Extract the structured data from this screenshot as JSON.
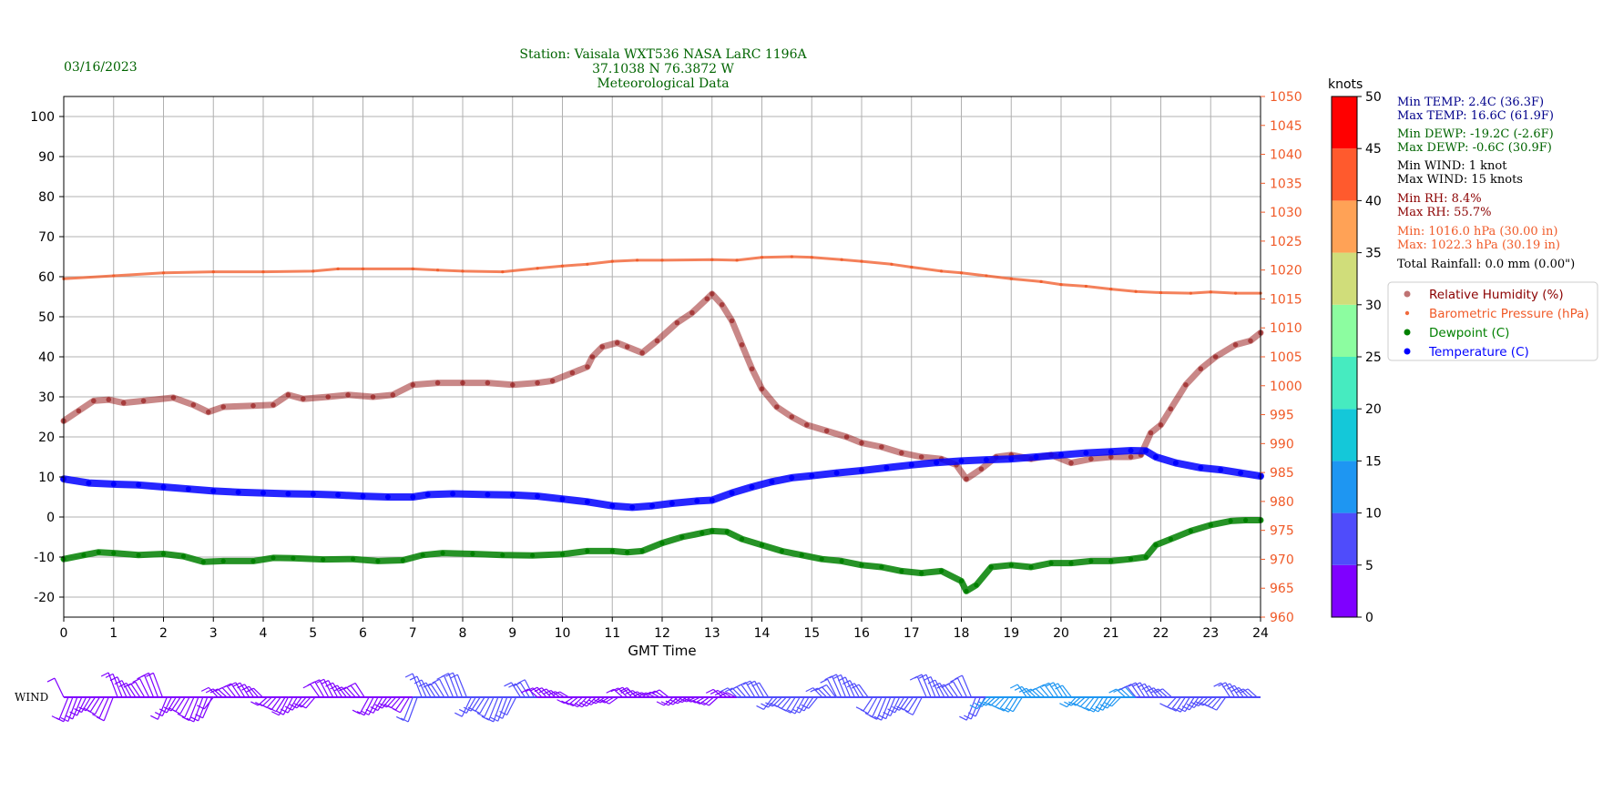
{
  "header": {
    "date": "03/16/2023",
    "station_line1": "Station:  Vaisala WXT536  NASA LaRC 1196A",
    "station_line2": "37.1038 N 76.3872 W",
    "station_line3": "Meteorological Data"
  },
  "colors": {
    "rh": "#8b0000",
    "pressure": "#f05a28",
    "dewpoint": "#008000",
    "temperature": "#0000ff",
    "stats_temp": "#00008b",
    "stats_dewp": "#006400",
    "stats_wind": "#000000",
    "stats_rh": "#8b0000",
    "stats_pressure": "#f05a28"
  },
  "chart_data": {
    "type": "scatter",
    "xlabel": "GMT Time",
    "xlim": [
      0,
      24
    ],
    "x_ticks": [
      "0",
      "1",
      "2",
      "3",
      "4",
      "5",
      "6",
      "7",
      "8",
      "9",
      "10",
      "11",
      "12",
      "13",
      "14",
      "15",
      "16",
      "17",
      "18",
      "19",
      "20",
      "21",
      "22",
      "23",
      "24"
    ],
    "ylim_left": [
      -25,
      105
    ],
    "y_ticks_left": [
      "-20",
      "-10",
      "0",
      "10",
      "20",
      "30",
      "40",
      "50",
      "60",
      "70",
      "80",
      "90",
      "100"
    ],
    "ylim_right": [
      960,
      1050
    ],
    "y_ticks_right": [
      "960",
      "965",
      "970",
      "975",
      "980",
      "985",
      "990",
      "995",
      "1000",
      "1005",
      "1010",
      "1015",
      "1020",
      "1025",
      "1030",
      "1035",
      "1040",
      "1045",
      "1050"
    ],
    "grid": true,
    "legend_position": "right",
    "series": [
      {
        "name": "Relative Humidity (%)",
        "axis": "left",
        "points": [
          [
            0,
            24
          ],
          [
            0.3,
            26.5
          ],
          [
            0.6,
            29
          ],
          [
            0.9,
            29.3
          ],
          [
            1.2,
            28.5
          ],
          [
            1.6,
            29
          ],
          [
            2.2,
            29.8
          ],
          [
            2.6,
            28
          ],
          [
            2.9,
            26.2
          ],
          [
            3.2,
            27.5
          ],
          [
            3.8,
            27.8
          ],
          [
            4.2,
            28
          ],
          [
            4.5,
            30.5
          ],
          [
            4.8,
            29.5
          ],
          [
            5.3,
            30
          ],
          [
            5.7,
            30.5
          ],
          [
            6.2,
            30
          ],
          [
            6.6,
            30.5
          ],
          [
            7,
            33
          ],
          [
            7.5,
            33.5
          ],
          [
            8,
            33.5
          ],
          [
            8.5,
            33.5
          ],
          [
            9,
            33
          ],
          [
            9.5,
            33.5
          ],
          [
            9.8,
            34
          ],
          [
            10.2,
            36
          ],
          [
            10.5,
            37.5
          ],
          [
            10.6,
            40
          ],
          [
            10.8,
            42.5
          ],
          [
            11.1,
            43.5
          ],
          [
            11.3,
            42.5
          ],
          [
            11.6,
            41
          ],
          [
            11.9,
            44
          ],
          [
            12.3,
            48.5
          ],
          [
            12.6,
            51
          ],
          [
            12.9,
            54.5
          ],
          [
            13,
            55.7
          ],
          [
            13.2,
            53
          ],
          [
            13.4,
            49
          ],
          [
            13.6,
            43
          ],
          [
            13.8,
            37
          ],
          [
            14,
            32
          ],
          [
            14.3,
            27.5
          ],
          [
            14.6,
            25
          ],
          [
            14.9,
            23
          ],
          [
            15.3,
            21.5
          ],
          [
            15.7,
            20
          ],
          [
            16,
            18.5
          ],
          [
            16.4,
            17.5
          ],
          [
            16.8,
            16
          ],
          [
            17.2,
            15
          ],
          [
            17.6,
            14.5
          ],
          [
            17.9,
            13
          ],
          [
            18.1,
            9.5
          ],
          [
            18.4,
            12
          ],
          [
            18.7,
            15
          ],
          [
            19,
            15.5
          ],
          [
            19.4,
            14.5
          ],
          [
            19.8,
            15.5
          ],
          [
            20.2,
            13.5
          ],
          [
            20.6,
            14.5
          ],
          [
            21,
            15
          ],
          [
            21.4,
            15
          ],
          [
            21.6,
            15.5
          ],
          [
            21.8,
            21
          ],
          [
            22,
            23
          ],
          [
            22.2,
            27
          ],
          [
            22.5,
            33
          ],
          [
            22.8,
            37
          ],
          [
            23.1,
            40
          ],
          [
            23.5,
            43
          ],
          [
            23.8,
            44
          ],
          [
            24,
            46
          ]
        ]
      },
      {
        "name": "Barometric Pressure (hPa)",
        "axis": "right",
        "points": [
          [
            0,
            1018.5
          ],
          [
            1,
            1019
          ],
          [
            2,
            1019.5
          ],
          [
            3,
            1019.7
          ],
          [
            4,
            1019.7
          ],
          [
            5,
            1019.8
          ],
          [
            5.5,
            1020.2
          ],
          [
            6,
            1020.2
          ],
          [
            7,
            1020.2
          ],
          [
            7.5,
            1020
          ],
          [
            8,
            1019.8
          ],
          [
            8.8,
            1019.7
          ],
          [
            9.5,
            1020.3
          ],
          [
            10,
            1020.7
          ],
          [
            10.5,
            1021
          ],
          [
            11,
            1021.5
          ],
          [
            11.5,
            1021.7
          ],
          [
            12,
            1021.7
          ],
          [
            13,
            1021.8
          ],
          [
            13.5,
            1021.7
          ],
          [
            14,
            1022.2
          ],
          [
            14.6,
            1022.3
          ],
          [
            15,
            1022.2
          ],
          [
            15.6,
            1021.8
          ],
          [
            16,
            1021.5
          ],
          [
            16.6,
            1021
          ],
          [
            17,
            1020.5
          ],
          [
            17.6,
            1019.8
          ],
          [
            18,
            1019.5
          ],
          [
            18.5,
            1019
          ],
          [
            19,
            1018.5
          ],
          [
            19.6,
            1018
          ],
          [
            20,
            1017.5
          ],
          [
            20.5,
            1017.2
          ],
          [
            21,
            1016.7
          ],
          [
            21.5,
            1016.3
          ],
          [
            22,
            1016.1
          ],
          [
            22.6,
            1016
          ],
          [
            23,
            1016.2
          ],
          [
            23.5,
            1016
          ],
          [
            24,
            1016
          ]
        ]
      },
      {
        "name": "Dewpoint (C)",
        "axis": "left",
        "points": [
          [
            0,
            -10.5
          ],
          [
            0.4,
            -9.5
          ],
          [
            0.7,
            -8.8
          ],
          [
            1,
            -9
          ],
          [
            1.5,
            -9.5
          ],
          [
            2,
            -9.2
          ],
          [
            2.4,
            -9.8
          ],
          [
            2.8,
            -11.2
          ],
          [
            3.2,
            -11
          ],
          [
            3.8,
            -11
          ],
          [
            4.2,
            -10.2
          ],
          [
            4.6,
            -10.3
          ],
          [
            5.2,
            -10.6
          ],
          [
            5.8,
            -10.5
          ],
          [
            6.3,
            -11
          ],
          [
            6.8,
            -10.8
          ],
          [
            7.2,
            -9.5
          ],
          [
            7.6,
            -9
          ],
          [
            8.2,
            -9.2
          ],
          [
            8.8,
            -9.5
          ],
          [
            9.4,
            -9.6
          ],
          [
            10,
            -9.3
          ],
          [
            10.5,
            -8.5
          ],
          [
            11,
            -8.5
          ],
          [
            11.3,
            -8.8
          ],
          [
            11.6,
            -8.5
          ],
          [
            12,
            -6.5
          ],
          [
            12.4,
            -5
          ],
          [
            12.8,
            -4
          ],
          [
            13,
            -3.5
          ],
          [
            13.3,
            -3.7
          ],
          [
            13.6,
            -5.5
          ],
          [
            14,
            -7
          ],
          [
            14.4,
            -8.5
          ],
          [
            14.8,
            -9.5
          ],
          [
            15.2,
            -10.5
          ],
          [
            15.6,
            -11
          ],
          [
            16,
            -12
          ],
          [
            16.4,
            -12.5
          ],
          [
            16.8,
            -13.5
          ],
          [
            17.2,
            -14
          ],
          [
            17.6,
            -13.5
          ],
          [
            18,
            -16
          ],
          [
            18.1,
            -18.5
          ],
          [
            18.3,
            -17
          ],
          [
            18.6,
            -12.5
          ],
          [
            19,
            -12
          ],
          [
            19.4,
            -12.5
          ],
          [
            19.8,
            -11.5
          ],
          [
            20.2,
            -11.5
          ],
          [
            20.6,
            -11
          ],
          [
            21,
            -11
          ],
          [
            21.4,
            -10.5
          ],
          [
            21.7,
            -10
          ],
          [
            21.9,
            -7
          ],
          [
            22.2,
            -5.5
          ],
          [
            22.6,
            -3.5
          ],
          [
            23,
            -2
          ],
          [
            23.4,
            -1
          ],
          [
            23.7,
            -0.8
          ],
          [
            24,
            -0.8
          ]
        ]
      },
      {
        "name": "Temperature (C)",
        "axis": "left",
        "points": [
          [
            0,
            9.5
          ],
          [
            0.5,
            8.5
          ],
          [
            1,
            8.2
          ],
          [
            1.5,
            8
          ],
          [
            2,
            7.5
          ],
          [
            2.5,
            7
          ],
          [
            3,
            6.5
          ],
          [
            3.5,
            6.2
          ],
          [
            4,
            6
          ],
          [
            4.5,
            5.8
          ],
          [
            5,
            5.7
          ],
          [
            5.5,
            5.5
          ],
          [
            6,
            5.2
          ],
          [
            6.5,
            5
          ],
          [
            7,
            5
          ],
          [
            7.3,
            5.6
          ],
          [
            7.8,
            5.8
          ],
          [
            8.5,
            5.6
          ],
          [
            9,
            5.5
          ],
          [
            9.5,
            5.2
          ],
          [
            10,
            4.5
          ],
          [
            10.5,
            3.8
          ],
          [
            11,
            2.8
          ],
          [
            11.4,
            2.4
          ],
          [
            11.8,
            2.8
          ],
          [
            12.2,
            3.4
          ],
          [
            12.7,
            4
          ],
          [
            13,
            4.2
          ],
          [
            13.4,
            6
          ],
          [
            13.8,
            7.5
          ],
          [
            14.2,
            8.8
          ],
          [
            14.6,
            9.8
          ],
          [
            15,
            10.3
          ],
          [
            15.5,
            11
          ],
          [
            16,
            11.6
          ],
          [
            16.5,
            12.3
          ],
          [
            17,
            13
          ],
          [
            17.5,
            13.6
          ],
          [
            18,
            14
          ],
          [
            18.5,
            14.3
          ],
          [
            19,
            14.5
          ],
          [
            19.5,
            15
          ],
          [
            20,
            15.5
          ],
          [
            20.5,
            16
          ],
          [
            21,
            16.3
          ],
          [
            21.4,
            16.6
          ],
          [
            21.7,
            16.5
          ],
          [
            21.9,
            15
          ],
          [
            22.3,
            13.5
          ],
          [
            22.8,
            12.3
          ],
          [
            23.2,
            11.8
          ],
          [
            23.6,
            11
          ],
          [
            24,
            10.2
          ]
        ]
      }
    ]
  },
  "colorbar": {
    "title": "knots",
    "ticks": [
      "0",
      "5",
      "10",
      "15",
      "20",
      "25",
      "30",
      "35",
      "40",
      "45",
      "50"
    ],
    "colors": [
      "#7f00ff",
      "#4f4cfb",
      "#1e96f2",
      "#14c8d9",
      "#46ebc0",
      "#8cfda0",
      "#d0dd7a",
      "#ffa256",
      "#ff5a2d",
      "#ff0000"
    ]
  },
  "wind": {
    "label": "WIND",
    "segments": [
      {
        "from": 0,
        "to": 3,
        "color": "#7f00ff",
        "height": 30
      },
      {
        "from": 3,
        "to": 4.5,
        "color": "#7f00ff",
        "height": 18
      },
      {
        "from": 4.5,
        "to": 7,
        "color": "#7f00ff",
        "height": 22
      },
      {
        "from": 7,
        "to": 9.5,
        "color": "#4f4cfb",
        "height": 30
      },
      {
        "from": 9.5,
        "to": 11.5,
        "color": "#7f00ff",
        "height": 12
      },
      {
        "from": 11.5,
        "to": 13.5,
        "color": "#7f00ff",
        "height": 10
      },
      {
        "from": 13.5,
        "to": 15.5,
        "color": "#4f4cfb",
        "height": 20
      },
      {
        "from": 15.5,
        "to": 18.5,
        "color": "#4f4cfb",
        "height": 28
      },
      {
        "from": 18.5,
        "to": 21.5,
        "color": "#1e96f2",
        "height": 18
      },
      {
        "from": 21.5,
        "to": 24,
        "color": "#4f4cfb",
        "height": 18
      }
    ]
  },
  "stats": {
    "min_temp": "Min TEMP: 2.4C (36.3F)",
    "max_temp": "Max TEMP: 16.6C (61.9F)",
    "min_dewp": "Min DEWP: -19.2C (-2.6F)",
    "max_dewp": "Max DEWP: -0.6C (30.9F)",
    "min_wind": "Min WIND: 1 knot",
    "max_wind": "Max WIND: 15 knots",
    "min_rh": "Min RH: 8.4%",
    "max_rh": "Max RH: 55.7%",
    "min_pressure": "Min: 1016.0 hPa (30.00 in)",
    "max_pressure": "Max: 1022.3 hPa (30.19 in)",
    "rainfall": "Total Rainfall: 0.0 mm (0.00\")"
  },
  "legend": {
    "items": [
      "Relative Humidity (%)",
      "Barometric Pressure (hPa)",
      "Dewpoint (C)",
      "Temperature (C)"
    ]
  }
}
